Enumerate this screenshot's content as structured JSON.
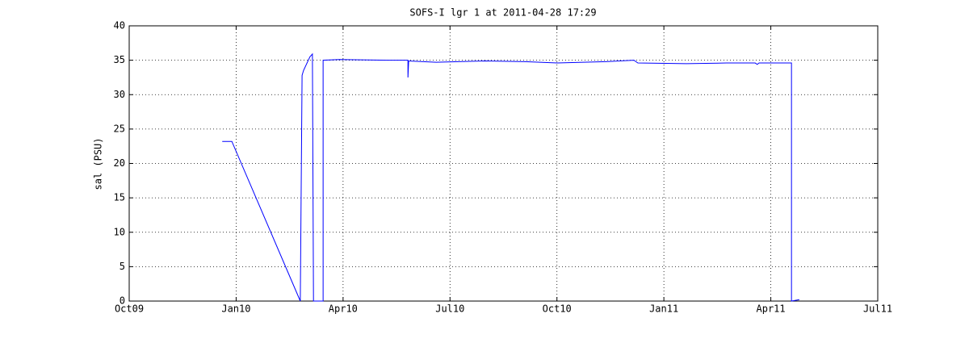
{
  "chart_data": {
    "type": "line",
    "title": "SOFS-I lgr 1 at 2011-04-28 17:29",
    "y_label": "sal (PSU)",
    "color": "#0000ff",
    "grid": true,
    "x": [
      2.61,
      2.88,
      4.8,
      4.85,
      4.89,
      5.07,
      5.14,
      5.17,
      5.44,
      5.44,
      5.89,
      7.25,
      7.82,
      7.82,
      7.84,
      8.61,
      9.97,
      11.1,
      12.01,
      13.37,
      14.16,
      14.27,
      15.63,
      16.76,
      17.56,
      17.62,
      17.67,
      18.58,
      18.58,
      18.8
    ],
    "values": [
      23.2,
      23.2,
      0,
      32.8,
      33.5,
      35.5,
      35.9,
      0,
      0,
      35.0,
      35.1,
      35.0,
      35.0,
      32.5,
      34.9,
      34.7,
      34.9,
      34.8,
      34.6,
      34.8,
      35.0,
      34.6,
      34.5,
      34.6,
      34.6,
      34.4,
      34.6,
      34.6,
      0,
      0.2
    ],
    "xlim": [
      0,
      21
    ],
    "xticks": [
      {
        "value": 0,
        "label": "Oct09"
      },
      {
        "value": 3,
        "label": "Jan10"
      },
      {
        "value": 6,
        "label": "Apr10"
      },
      {
        "value": 9,
        "label": "Jul10"
      },
      {
        "value": 12,
        "label": "Oct10"
      },
      {
        "value": 15,
        "label": "Jan11"
      },
      {
        "value": 18,
        "label": "Apr11"
      },
      {
        "value": 21,
        "label": "Jul11"
      }
    ],
    "ylim": [
      0,
      40
    ],
    "yticks": [
      0,
      5,
      10,
      15,
      20,
      25,
      30,
      35,
      40
    ]
  }
}
